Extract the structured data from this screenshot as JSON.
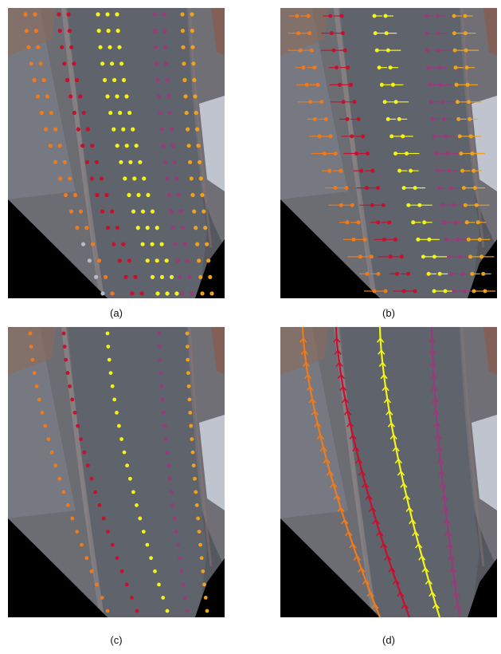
{
  "figure": {
    "panels": [
      {
        "id": "a",
        "caption": "(a)"
      },
      {
        "id": "b",
        "caption": "(b)"
      },
      {
        "id": "c",
        "caption": "(c)"
      },
      {
        "id": "d",
        "caption": "(d)"
      }
    ]
  },
  "colors": {
    "orange": "#f07a1a",
    "red": "#c8102e",
    "yellow": "#f4f418",
    "purple": "#9b3a7a",
    "amber": "#f0a21a",
    "gray": "#b8bcc8"
  }
}
